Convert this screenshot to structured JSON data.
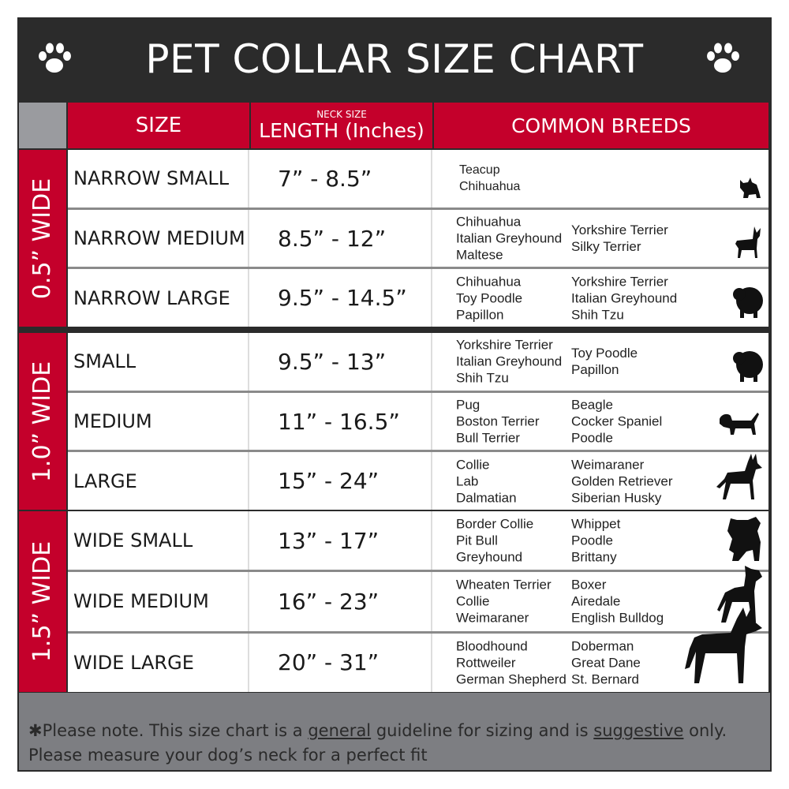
{
  "title": "PET COLLAR SIZE CHART",
  "headers": {
    "size": "SIZE",
    "neck_size": "NECK SIZE",
    "length": "LENGTH (Inches)",
    "breeds": "COMMON BREEDS"
  },
  "colors": {
    "accent_red": "#c4002b",
    "dark": "#2b2b2b",
    "footer_gray": "#7d7e82"
  },
  "groups": [
    {
      "label": "0.5” WIDE",
      "rows": [
        {
          "size": "NARROW SMALL",
          "length": "7” - 8.5”",
          "breeds_col1": [
            "Teacup",
            "Chihuahua"
          ],
          "breeds_col2": [],
          "icon": "yorkie-icon"
        },
        {
          "size": "NARROW MEDIUM",
          "length": "8.5” - 12”",
          "breeds_col1": [
            "Chihuahua",
            "Italian Greyhound",
            "Maltese"
          ],
          "breeds_col2": [
            "Yorkshire Terrier",
            "Silky Terrier"
          ],
          "icon": "chihuahua-icon"
        },
        {
          "size": "NARROW LARGE",
          "length": "9.5” - 14.5”",
          "breeds_col1": [
            "Chihuahua",
            "Toy Poodle",
            "Papillon"
          ],
          "breeds_col2": [
            "Yorkshire Terrier",
            "Italian Greyhound",
            "Shih Tzu"
          ],
          "icon": "pomeranian-icon"
        }
      ]
    },
    {
      "label": "1.0” WIDE",
      "rows": [
        {
          "size": "SMALL",
          "length": "9.5” - 13”",
          "breeds_col1": [
            "Yorkshire Terrier",
            "Italian Greyhound",
            "Shih Tzu"
          ],
          "breeds_col2": [
            "Toy Poodle",
            "Papillon"
          ],
          "icon": "pomeranian-icon"
        },
        {
          "size": "MEDIUM",
          "length": "11” - 16.5”",
          "breeds_col1": [
            "Pug",
            "Boston Terrier",
            "Bull Terrier"
          ],
          "breeds_col2": [
            "Beagle",
            "Cocker Spaniel",
            "Poodle"
          ],
          "icon": "spaniel-icon"
        },
        {
          "size": "LARGE",
          "length": "15” - 24”",
          "breeds_col1": [
            "Collie",
            "Lab",
            "Dalmatian"
          ],
          "breeds_col2": [
            "Weimaraner",
            "Golden Retriever",
            "Siberian Husky"
          ],
          "icon": "shepherd-icon"
        }
      ]
    },
    {
      "label": "1.5” WIDE",
      "rows": [
        {
          "size": "WIDE SMALL",
          "length": "13” - 17”",
          "breeds_col1": [
            "Border Collie",
            "Pit Bull",
            "Greyhound"
          ],
          "breeds_col2": [
            "Whippet",
            "Poodle",
            "Brittany"
          ],
          "icon": "bulldog-icon"
        },
        {
          "size": "WIDE MEDIUM",
          "length": "16” - 23”",
          "breeds_col1": [
            "Wheaten Terrier",
            "Collie",
            "Weimaraner"
          ],
          "breeds_col2": [
            "Boxer",
            "Airedale",
            "English Bulldog"
          ],
          "icon": "pitbull-icon"
        },
        {
          "size": "WIDE LARGE",
          "length": "20” - 31”",
          "breeds_col1": [
            "Bloodhound",
            "Rottweiler",
            "German Shepherd"
          ],
          "breeds_col2": [
            "Doberman",
            "Great Dane",
            "St. Bernard"
          ],
          "icon": "doberman-icon"
        }
      ]
    }
  ],
  "footer": {
    "line1_a": "✱Please note. This size chart is a ",
    "line1_u1": "general",
    "line1_b": " guideline for sizing and is ",
    "line1_u2": "suggestive",
    "line1_c": " only.",
    "line2": "Please measure your dog’s neck for a perfect fit"
  }
}
